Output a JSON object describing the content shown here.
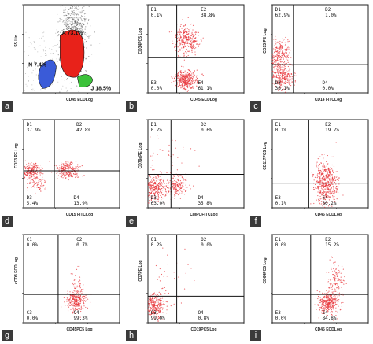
{
  "chart_data": [
    {
      "type": "scatter",
      "panel": "a",
      "xlabel": "CD45 ECDLog",
      "ylabel": "SS Lin",
      "populations": [
        {
          "label": "A",
          "value": "73.1%",
          "color": "#e8221a"
        },
        {
          "label": "N",
          "value": "7.4%",
          "color": "#3a5bd8"
        },
        {
          "label": "J",
          "value": "18.5%",
          "color": "#3cc23a"
        }
      ]
    },
    {
      "type": "scatter",
      "panel": "b",
      "xlabel": "CD45 ECDLog",
      "ylabel": "CD34PC5 Log",
      "quadrants": [
        {
          "label": "E1",
          "value": "0.1%"
        },
        {
          "label": "E2",
          "value": "38.8%"
        },
        {
          "label": "E3",
          "value": "0.0%"
        },
        {
          "label": "E4",
          "value": "61.1%"
        }
      ]
    },
    {
      "type": "scatter",
      "panel": "c",
      "xlabel": "CD14 FITCLog",
      "ylabel": "CD13 PE Log",
      "quadrants": [
        {
          "label": "D1",
          "value": "62.9%"
        },
        {
          "label": "D2",
          "value": "1.0%"
        },
        {
          "label": "D3",
          "value": "36.1%"
        },
        {
          "label": "D4",
          "value": "0.0%"
        }
      ]
    },
    {
      "type": "scatter",
      "panel": "d",
      "xlabel": "CD15 FITCLog",
      "ylabel": "CD33 PE Log",
      "quadrants": [
        {
          "label": "D1",
          "value": "37.9%"
        },
        {
          "label": "D2",
          "value": "42.8%"
        },
        {
          "label": "D3",
          "value": "5.4%"
        },
        {
          "label": "D4",
          "value": "13.9%"
        }
      ]
    },
    {
      "type": "scatter",
      "panel": "e",
      "xlabel": "CMPOFITCLog",
      "ylabel": "CD79aPE Log",
      "quadrants": [
        {
          "label": "D1",
          "value": "0.7%"
        },
        {
          "label": "D2",
          "value": "0.6%"
        },
        {
          "label": "D3",
          "value": "63.0%"
        },
        {
          "label": "D4",
          "value": "35.8%"
        }
      ]
    },
    {
      "type": "scatter",
      "panel": "f",
      "xlabel": "CD45 ECDLog",
      "ylabel": "CD117PC5 Log",
      "quadrants": [
        {
          "label": "E1",
          "value": "0.1%"
        },
        {
          "label": "E2",
          "value": "19.7%"
        },
        {
          "label": "E3",
          "value": "0.1%"
        },
        {
          "label": "E4",
          "value": "80.2%"
        }
      ]
    },
    {
      "type": "scatter",
      "panel": "g",
      "xlabel": "CD45PC5 Log",
      "ylabel": "cCD3 ECDLog",
      "quadrants": [
        {
          "label": "C1",
          "value": "0.0%"
        },
        {
          "label": "C2",
          "value": "0.7%"
        },
        {
          "label": "C3",
          "value": "0.0%"
        },
        {
          "label": "C4",
          "value": "99.3%"
        }
      ]
    },
    {
      "type": "scatter",
      "panel": "h",
      "xlabel": "CD19PC5 Log",
      "ylabel": "CD7PE Log",
      "quadrants": [
        {
          "label": "O1",
          "value": "0.2%"
        },
        {
          "label": "O2",
          "value": "0.0%"
        },
        {
          "label": "O3",
          "value": "99.0%"
        },
        {
          "label": "O4",
          "value": "0.8%"
        }
      ]
    },
    {
      "type": "scatter",
      "panel": "i",
      "xlabel": "CD45 ECDLog",
      "ylabel": "CD64PC5 Log",
      "quadrants": [
        {
          "label": "E1",
          "value": "0.0%"
        },
        {
          "label": "E2",
          "value": "15.2%"
        },
        {
          "label": "E3",
          "value": "0.0%"
        },
        {
          "label": "E4",
          "value": "84.8%"
        }
      ]
    }
  ],
  "panel_letters": [
    "a",
    "b",
    "c",
    "d",
    "e",
    "f",
    "g",
    "h",
    "i"
  ],
  "colors": {
    "events": "#e8343a",
    "gray_events": "#555555"
  }
}
